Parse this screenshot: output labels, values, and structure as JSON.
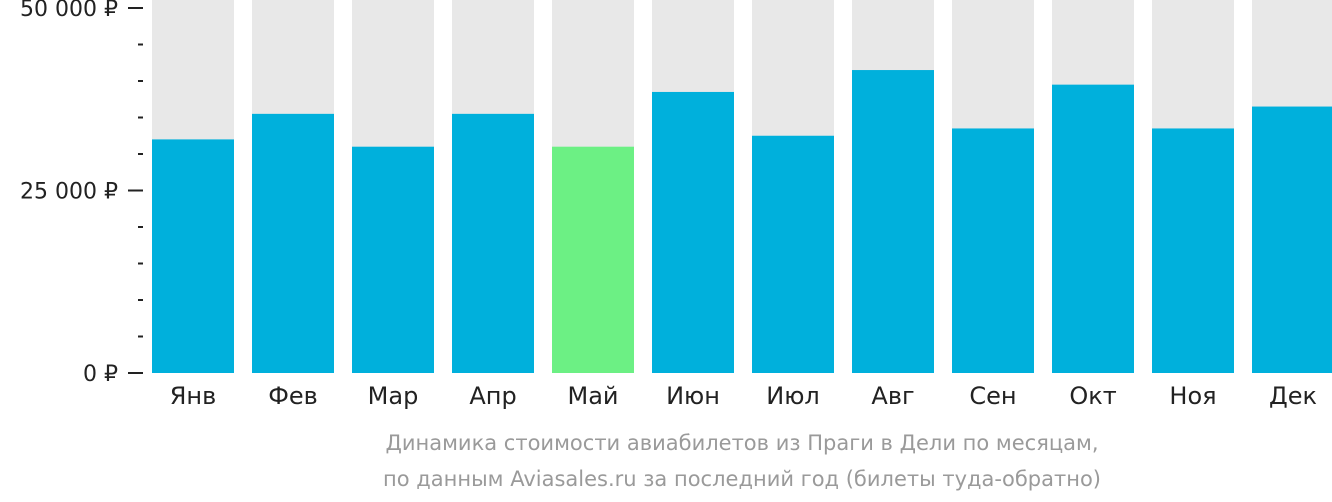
{
  "chart_data": {
    "type": "bar",
    "categories": [
      "Янв",
      "Фев",
      "Мар",
      "Апр",
      "Май",
      "Июн",
      "Июл",
      "Авг",
      "Сен",
      "Окт",
      "Ноя",
      "Дек"
    ],
    "values": [
      32000,
      35500,
      31000,
      35500,
      31000,
      38500,
      32500,
      41500,
      33500,
      39500,
      33500,
      36500
    ],
    "ylim": [
      0,
      50000
    ],
    "yticks": [
      {
        "value": 50000,
        "label": "50 000 ₽"
      },
      {
        "value": 25000,
        "label": "25 000 ₽"
      },
      {
        "value": 0,
        "label": "0 ₽"
      }
    ],
    "minor_tick_step": 5000,
    "highlight_index": 4,
    "colors": {
      "bar": "#00b0dc",
      "highlight": "#6cf084",
      "background_bar": "#e8e8e8",
      "axis": "#222222"
    },
    "caption_line1": "Динамика стоимости авиабилетов из Праги в Дели по месяцам,",
    "caption_line2": "по данным Aviasales.ru за последний год (билеты туда-обратно)"
  }
}
